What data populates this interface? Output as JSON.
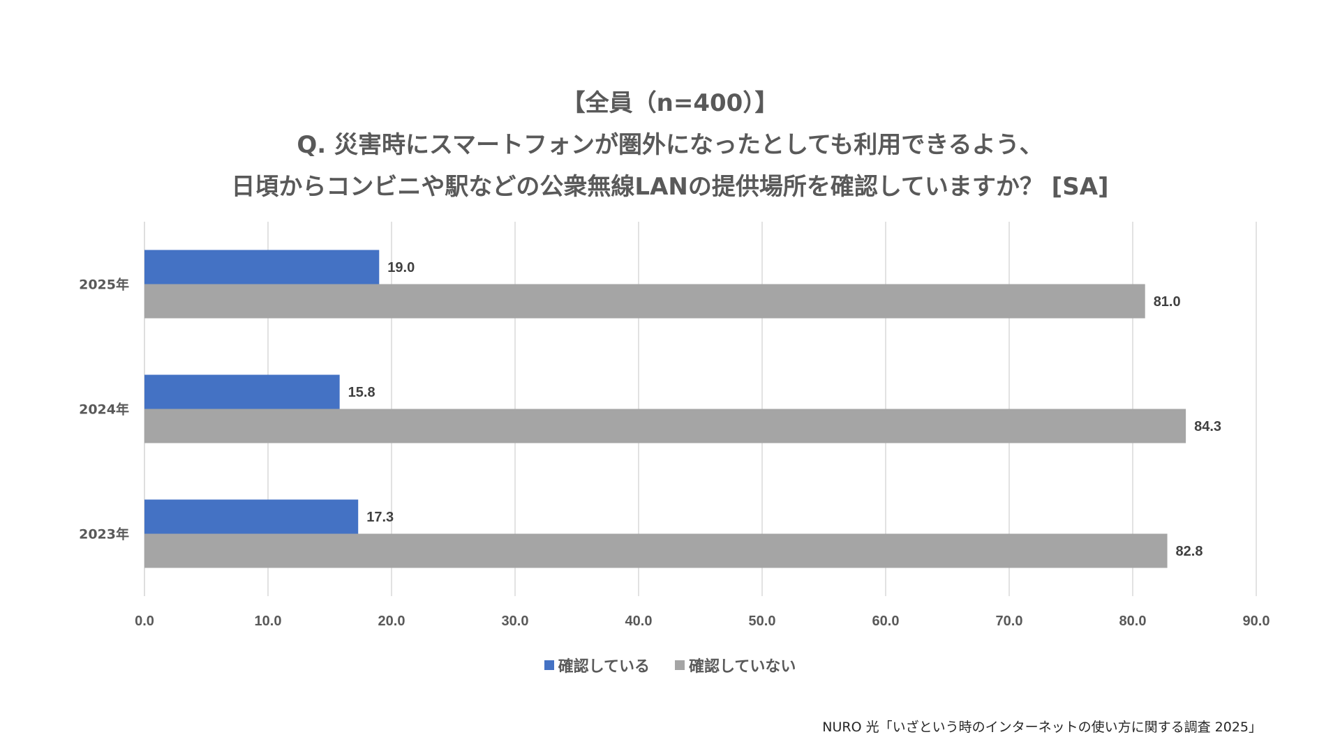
{
  "title": {
    "line1": "【全員（n=400）】",
    "line2": "Q. 災害時にスマートフォンが圏外になったとしても利用できるよう、",
    "line3": "日頃からコンビニや駅などの公衆無線LANの提供場所を確認していますか？ [SA]"
  },
  "chart_data": {
    "type": "bar",
    "orientation": "horizontal",
    "categories": [
      "2025年",
      "2024年",
      "2023年"
    ],
    "series": [
      {
        "name": "確認している",
        "color": "#4472C4",
        "values": [
          19.0,
          15.8,
          17.3
        ],
        "labels": [
          "19.0",
          "15.8",
          "17.3"
        ]
      },
      {
        "name": "確認していない",
        "color": "#A5A5A5",
        "values": [
          81.0,
          84.3,
          82.8
        ],
        "labels": [
          "81.0",
          "84.3",
          "82.8"
        ]
      }
    ],
    "xlim": [
      0,
      90
    ],
    "xticks": [
      "0.0",
      "10.0",
      "20.0",
      "30.0",
      "40.0",
      "50.0",
      "60.0",
      "70.0",
      "80.0",
      "90.0"
    ],
    "grid": true,
    "legend_position": "bottom"
  },
  "source": "NURO 光「いざという時のインターネットの使い方に関する調査 2025」"
}
